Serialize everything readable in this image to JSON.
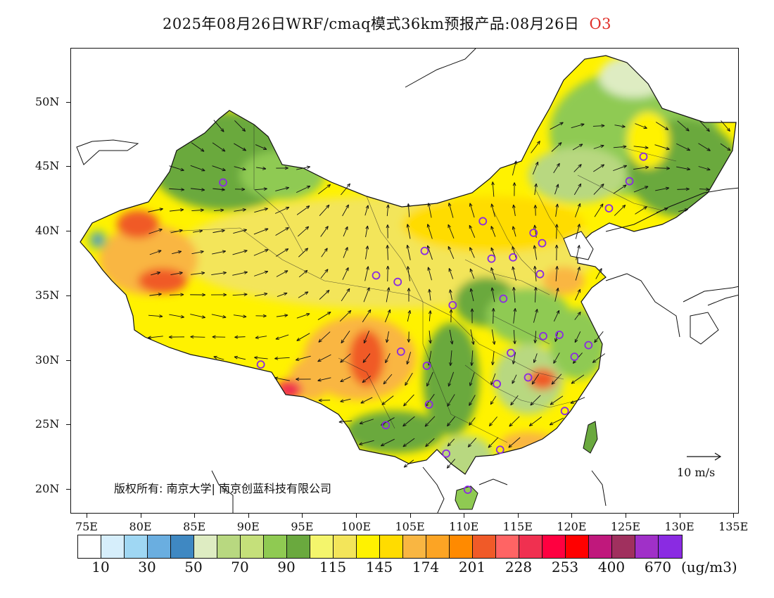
{
  "title": {
    "main": "2025年08月26日WRF/cmaq模式36km预报产品:08月26日",
    "pollutant": "O3"
  },
  "axes": {
    "lat_labels": [
      "50N",
      "45N",
      "40N",
      "35N",
      "30N",
      "25N",
      "20N"
    ],
    "lat_values": [
      50,
      45,
      40,
      35,
      30,
      25,
      20
    ],
    "lon_labels": [
      "75E",
      "80E",
      "85E",
      "90E",
      "95E",
      "100E",
      "105E",
      "110E",
      "115E",
      "120E",
      "125E",
      "130E",
      "135E"
    ],
    "lon_values": [
      75,
      80,
      85,
      90,
      95,
      100,
      105,
      110,
      115,
      120,
      125,
      130,
      135
    ],
    "lon_range": [
      73,
      135
    ],
    "lat_range": [
      18,
      54
    ]
  },
  "copyright": "版权所有: 南京大学| 南京创蓝科技有限公司",
  "wind_reference": {
    "label": "10 m/s",
    "speed": 10
  },
  "colorbar": {
    "unit": "(ug/m3)",
    "colors": [
      "#ffffff",
      "#d6eefb",
      "#9fd7f3",
      "#6aaee0",
      "#3f88c2",
      "#deecc2",
      "#b8d880",
      "#c5e07a",
      "#8fca52",
      "#6aa93e",
      "#f4f56c",
      "#f3e55a",
      "#fff200",
      "#ffdc00",
      "#f9b642",
      "#fca424",
      "#ff8a00",
      "#f05a28",
      "#ff6464",
      "#f03050",
      "#ff0040",
      "#ff0000",
      "#c0187c",
      "#a0305e",
      "#a030c8",
      "#8a2be2"
    ],
    "tick_labels": [
      "10",
      "30",
      "50",
      "70",
      "90",
      "115",
      "145",
      "174",
      "201",
      "228",
      "253",
      "400",
      "670"
    ]
  },
  "stations": [
    {
      "lon": 87.6,
      "lat": 43.8
    },
    {
      "lon": 91.1,
      "lat": 29.7
    },
    {
      "lon": 101.8,
      "lat": 36.6
    },
    {
      "lon": 103.8,
      "lat": 36.1
    },
    {
      "lon": 106.3,
      "lat": 38.5
    },
    {
      "lon": 111.7,
      "lat": 40.8
    },
    {
      "lon": 104.1,
      "lat": 30.7
    },
    {
      "lon": 106.5,
      "lat": 29.6
    },
    {
      "lon": 106.7,
      "lat": 26.6
    },
    {
      "lon": 102.7,
      "lat": 25.0
    },
    {
      "lon": 108.3,
      "lat": 22.8
    },
    {
      "lon": 110.3,
      "lat": 20.0
    },
    {
      "lon": 113.3,
      "lat": 23.1
    },
    {
      "lon": 113.0,
      "lat": 28.2
    },
    {
      "lon": 114.3,
      "lat": 30.6
    },
    {
      "lon": 115.9,
      "lat": 28.7
    },
    {
      "lon": 119.3,
      "lat": 26.1
    },
    {
      "lon": 120.2,
      "lat": 30.3
    },
    {
      "lon": 121.5,
      "lat": 31.2
    },
    {
      "lon": 118.8,
      "lat": 32.0
    },
    {
      "lon": 117.3,
      "lat": 31.9
    },
    {
      "lon": 113.6,
      "lat": 34.8
    },
    {
      "lon": 108.9,
      "lat": 34.3
    },
    {
      "lon": 112.5,
      "lat": 37.9
    },
    {
      "lon": 114.5,
      "lat": 38.0
    },
    {
      "lon": 116.4,
      "lat": 39.9
    },
    {
      "lon": 117.2,
      "lat": 39.1
    },
    {
      "lon": 117.0,
      "lat": 36.7
    },
    {
      "lon": 123.4,
      "lat": 41.8
    },
    {
      "lon": 125.3,
      "lat": 43.9
    },
    {
      "lon": 126.6,
      "lat": 45.8
    }
  ]
}
